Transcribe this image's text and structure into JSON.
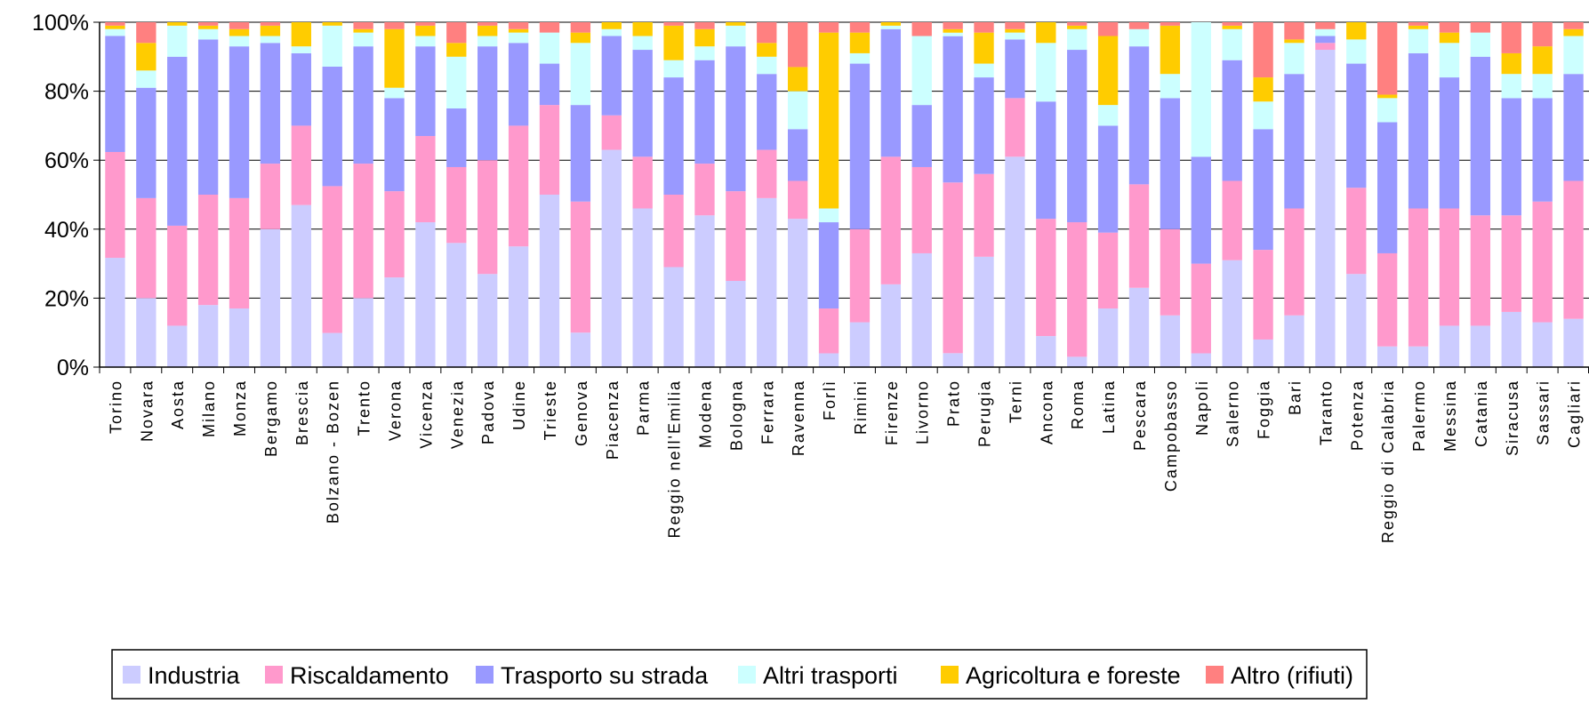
{
  "chart_data": {
    "type": "bar",
    "stacked": true,
    "normalized": true,
    "title": "",
    "xlabel": "",
    "ylabel": "",
    "ylim": [
      0,
      100
    ],
    "yticks": [
      "0%",
      "20%",
      "40%",
      "60%",
      "80%",
      "100%"
    ],
    "grid": true,
    "legend_position": "bottom",
    "categories": [
      "Torino",
      "Novara",
      "Aosta",
      "Milano",
      "Monza",
      "Bergamo",
      "Brescia",
      "Bolzano - Bozen",
      "Trento",
      "Verona",
      "Vicenza",
      "Venezia",
      "Padova",
      "Udine",
      "Trieste",
      "Genova",
      "Piacenza",
      "Parma",
      "Reggio nell'Emilia",
      "Modena",
      "Bologna",
      "Ferrara",
      "Ravenna",
      "Forlì",
      "Rimini",
      "Firenze",
      "Livorno",
      "Prato",
      "Perugia",
      "Terni",
      "Ancona",
      "Roma",
      "Latina",
      "Pescara",
      "Campobasso",
      "Napoli",
      "Salerno",
      "Foggia",
      "Bari",
      "Taranto",
      "Potenza",
      "Reggio di Calabria",
      "Palermo",
      "Messina",
      "Catania",
      "Siracusa",
      "Sassari",
      "Cagliari"
    ],
    "series": [
      {
        "name": "Industria",
        "color": "#ccccff",
        "values": [
          32,
          20,
          12,
          18,
          17,
          40,
          47,
          10,
          20,
          26,
          42,
          36,
          27,
          35,
          50,
          10,
          63,
          46,
          29,
          44,
          25,
          49,
          43,
          4,
          13,
          24,
          33,
          4,
          32,
          61,
          9,
          3,
          17,
          23,
          15,
          4,
          31,
          8,
          15,
          92,
          27,
          6,
          6,
          12,
          12,
          16,
          13,
          14
        ]
      },
      {
        "name": "Riscaldamento",
        "color": "#ff99cc",
        "values": [
          31,
          29,
          29,
          32,
          32,
          19,
          23,
          43,
          39,
          25,
          25,
          22,
          33,
          35,
          26,
          38,
          10,
          15,
          21,
          15,
          26,
          14,
          11,
          13,
          27,
          37,
          25,
          49,
          24,
          17,
          34,
          39,
          22,
          30,
          25,
          26,
          23,
          26,
          31,
          2,
          25,
          27,
          40,
          34,
          32,
          28,
          35,
          40
        ]
      },
      {
        "name": "Trasporto su strada",
        "color": "#9999ff",
        "values": [
          34,
          32,
          49,
          45,
          44,
          35,
          21,
          35,
          34,
          27,
          26,
          17,
          33,
          24,
          12,
          28,
          23,
          31,
          34,
          30,
          42,
          22,
          15,
          25,
          48,
          37,
          18,
          42,
          28,
          17,
          34,
          50,
          31,
          40,
          38,
          31,
          35,
          35,
          39,
          2,
          36,
          38,
          45,
          38,
          46,
          34,
          30,
          31
        ]
      },
      {
        "name": "Altri trasporti",
        "color": "#ccffff",
        "values": [
          2,
          5,
          9,
          3,
          3,
          2,
          2,
          12,
          4,
          3,
          3,
          15,
          3,
          3,
          9,
          18,
          2,
          4,
          5,
          4,
          6,
          5,
          11,
          4,
          3,
          1,
          20,
          1,
          4,
          2,
          17,
          6,
          6,
          5,
          7,
          39,
          9,
          8,
          9,
          2,
          7,
          7,
          7,
          10,
          7,
          7,
          7,
          11
        ]
      },
      {
        "name": "Agricoltura e foreste",
        "color": "#ffcc00",
        "values": [
          1,
          8,
          1,
          1,
          2,
          3,
          7,
          1,
          1,
          17,
          3,
          4,
          3,
          1,
          0,
          3,
          2,
          4,
          10,
          5,
          1,
          4,
          7,
          51,
          6,
          1,
          0,
          1,
          9,
          1,
          6,
          1,
          20,
          0,
          14,
          0,
          1,
          7,
          1,
          0,
          5,
          1,
          1,
          3,
          0,
          6,
          8,
          2
        ]
      },
      {
        "name": "Altro  (rifiuti)",
        "color": "#ff8080",
        "values": [
          1,
          6,
          0,
          1,
          2,
          1,
          0,
          0,
          2,
          2,
          1,
          6,
          1,
          2,
          3,
          3,
          0,
          0,
          1,
          2,
          0,
          6,
          13,
          3,
          3,
          0,
          4,
          2,
          3,
          2,
          0,
          1,
          4,
          2,
          1,
          0,
          1,
          16,
          5,
          2,
          0,
          21,
          1,
          3,
          3,
          9,
          7,
          2
        ]
      }
    ]
  }
}
